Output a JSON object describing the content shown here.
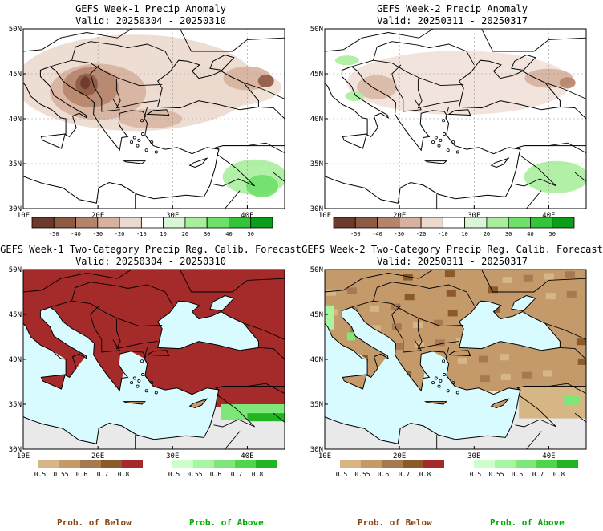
{
  "panels": [
    {
      "title": "GEFS Week-1 Precip Anomaly",
      "valid": "Valid: 20250304 - 20250310",
      "kind": "anomaly",
      "lat_labels": [
        "50N",
        "45N",
        "40N",
        "35N",
        "30N"
      ],
      "lon_labels": [
        "10E",
        "20E",
        "30E",
        "40E"
      ],
      "colorbar": {
        "ticks": [
          "-50",
          "-40",
          "-30",
          "-20",
          "-10",
          "10",
          "20",
          "30",
          "40",
          "50"
        ],
        "colors": [
          "#6b3a2b",
          "#8f5a44",
          "#b5846c",
          "#d6b19d",
          "#ecd9cd",
          "#ffffff",
          "#d9f7d6",
          "#a8ee9c",
          "#6fe06a",
          "#33c43a",
          "#0b9e1a"
        ]
      }
    },
    {
      "title": "GEFS Week-2 Precip Anomaly",
      "valid": "Valid: 20250311 - 20250317",
      "kind": "anomaly",
      "lat_labels": [
        "50N",
        "45N",
        "40N",
        "35N",
        "30N"
      ],
      "lon_labels": [
        "10E",
        "20E",
        "30E",
        "40E"
      ],
      "colorbar": {
        "ticks": [
          "-50",
          "-40",
          "-30",
          "-20",
          "-10",
          "10",
          "20",
          "30",
          "40",
          "50"
        ],
        "colors": [
          "#6b3a2b",
          "#8f5a44",
          "#b5846c",
          "#d6b19d",
          "#ecd9cd",
          "#ffffff",
          "#d9f7d6",
          "#a8ee9c",
          "#6fe06a",
          "#33c43a",
          "#0b9e1a"
        ]
      }
    },
    {
      "title": "GEFS Week-1 Two-Category Precip Reg. Calib. Forecast",
      "valid": "Valid: 20250304 - 20250310",
      "kind": "prob",
      "lat_labels": [
        "50N",
        "45N",
        "40N",
        "35N",
        "30N"
      ],
      "lon_labels": [
        "10E",
        "20E",
        "30E",
        "40E"
      ],
      "below_bar": {
        "ticks": [
          "0.5",
          "0.55",
          "0.6",
          "0.7",
          "0.8"
        ],
        "colors": [
          "#d7b686",
          "#c49a6b",
          "#a57a50",
          "#8b5a2b",
          "#a52a2a"
        ]
      },
      "above_bar": {
        "ticks": [
          "0.5",
          "0.55",
          "0.6",
          "0.7",
          "0.8"
        ],
        "colors": [
          "#ccffcc",
          "#a8f5a0",
          "#7fe77a",
          "#4fd44a",
          "#22b522"
        ]
      }
    },
    {
      "title": "GEFS Week-2 Two-Category Precip Reg. Calib. Forecast",
      "valid": "Valid: 20250311 - 20250317",
      "kind": "prob",
      "lat_labels": [
        "50N",
        "45N",
        "40N",
        "35N",
        "30N"
      ],
      "lon_labels": [
        "10E",
        "20E",
        "30E",
        "40E"
      ],
      "below_bar": {
        "ticks": [
          "0.5",
          "0.55",
          "0.6",
          "0.7",
          "0.8"
        ],
        "colors": [
          "#d7b686",
          "#c49a6b",
          "#a57a50",
          "#8b5a2b",
          "#a52a2a"
        ]
      },
      "above_bar": {
        "ticks": [
          "0.5",
          "0.55",
          "0.6",
          "0.7",
          "0.8"
        ],
        "colors": [
          "#ccffcc",
          "#a8f5a0",
          "#7fe77a",
          "#4fd44a",
          "#22b522"
        ]
      }
    }
  ],
  "footer": {
    "below_label": "Prob. of Below",
    "above_label": "Prob. of Above",
    "below_color": "#8b4513",
    "above_color": "#00aa00"
  }
}
